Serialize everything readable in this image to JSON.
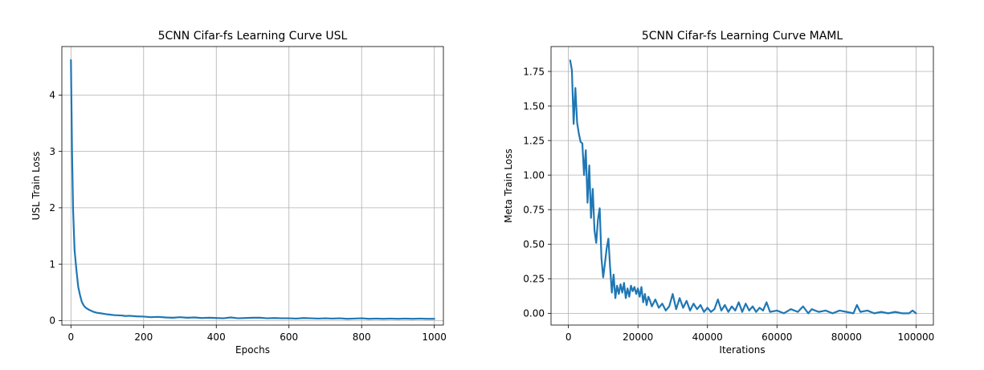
{
  "chart_data": [
    {
      "type": "line",
      "title": "5CNN Cifar-fs Learning Curve USL",
      "xlabel": "Epochs",
      "ylabel": "USL Train Loss",
      "xlim": [
        -25,
        1025
      ],
      "ylim": [
        -0.08,
        4.86
      ],
      "xticks": [
        0,
        200,
        400,
        600,
        800,
        1000
      ],
      "yticks": [
        0,
        1,
        2,
        3,
        4
      ],
      "xtick_labels": [
        "0",
        "200",
        "400",
        "600",
        "800",
        "1000"
      ],
      "ytick_labels": [
        "0",
        "1",
        "2",
        "3",
        "4"
      ],
      "grid": true,
      "color": "#1f77b4",
      "series": [
        {
          "x": [
            0,
            3,
            6,
            10,
            15,
            20,
            25,
            30,
            35,
            40,
            50,
            60,
            70,
            80,
            90,
            100,
            120,
            140,
            150,
            160,
            180,
            200,
            220,
            240,
            260,
            280,
            300,
            320,
            340,
            360,
            380,
            400,
            420,
            440,
            460,
            480,
            500,
            520,
            540,
            560,
            580,
            600,
            620,
            640,
            660,
            680,
            700,
            720,
            740,
            760,
            780,
            800,
            820,
            840,
            860,
            880,
            900,
            920,
            940,
            960,
            980,
            1000
          ],
          "y": [
            4.62,
            3.0,
            1.95,
            1.25,
            0.9,
            0.6,
            0.45,
            0.33,
            0.27,
            0.23,
            0.19,
            0.16,
            0.14,
            0.13,
            0.12,
            0.11,
            0.095,
            0.09,
            0.08,
            0.085,
            0.075,
            0.07,
            0.06,
            0.065,
            0.055,
            0.05,
            0.06,
            0.05,
            0.055,
            0.045,
            0.05,
            0.045,
            0.04,
            0.055,
            0.04,
            0.045,
            0.05,
            0.05,
            0.04,
            0.045,
            0.04,
            0.04,
            0.035,
            0.045,
            0.04,
            0.035,
            0.04,
            0.035,
            0.04,
            0.03,
            0.035,
            0.04,
            0.03,
            0.035,
            0.03,
            0.035,
            0.03,
            0.035,
            0.03,
            0.035,
            0.03,
            0.03
          ]
        }
      ]
    },
    {
      "type": "line",
      "title": "5CNN Cifar-fs Learning Curve MAML",
      "xlabel": "Iterations",
      "ylabel": "Meta Train Loss",
      "xlim": [
        -5000,
        105000
      ],
      "ylim": [
        -0.085,
        1.93
      ],
      "xticks": [
        0,
        20000,
        40000,
        60000,
        80000,
        100000
      ],
      "yticks": [
        0,
        0.25,
        0.5,
        0.75,
        1.0,
        1.25,
        1.5,
        1.75
      ],
      "xtick_labels": [
        "0",
        "20000",
        "40000",
        "60000",
        "80000",
        "100000"
      ],
      "ytick_labels": [
        "0.00",
        "0.25",
        "0.50",
        "0.75",
        "1.00",
        "1.25",
        "1.50",
        "1.75"
      ],
      "grid": true,
      "color": "#1f77b4",
      "series": [
        {
          "x": [
            500,
            1000,
            1500,
            2000,
            2500,
            3000,
            3500,
            4000,
            4500,
            5000,
            5500,
            6000,
            6500,
            7000,
            7500,
            8000,
            8500,
            9000,
            9500,
            10000,
            10500,
            11000,
            11500,
            12000,
            12500,
            13000,
            13500,
            14000,
            14500,
            15000,
            15500,
            16000,
            16500,
            17000,
            17500,
            18000,
            18500,
            19000,
            19500,
            20000,
            20500,
            21000,
            21500,
            22000,
            22500,
            23000,
            23500,
            24000,
            25000,
            26000,
            27000,
            28000,
            29000,
            30000,
            31000,
            32000,
            33000,
            34000,
            35000,
            36000,
            37000,
            38000,
            39000,
            40000,
            41000,
            42000,
            43000,
            44000,
            45000,
            46000,
            47000,
            48000,
            49000,
            50000,
            51000,
            52000,
            53000,
            54000,
            55000,
            56000,
            57000,
            58000,
            60000,
            62000,
            64000,
            66000,
            67500,
            69000,
            70000,
            72000,
            74000,
            76000,
            78000,
            80000,
            82000,
            83000,
            84000,
            86000,
            88000,
            90000,
            92000,
            94000,
            96000,
            98000,
            99000,
            100000
          ],
          "y": [
            1.83,
            1.76,
            1.37,
            1.63,
            1.38,
            1.3,
            1.24,
            1.23,
            1.0,
            1.18,
            0.8,
            1.07,
            0.69,
            0.9,
            0.6,
            0.51,
            0.68,
            0.76,
            0.4,
            0.26,
            0.36,
            0.47,
            0.54,
            0.33,
            0.15,
            0.28,
            0.11,
            0.2,
            0.14,
            0.21,
            0.15,
            0.22,
            0.11,
            0.18,
            0.12,
            0.2,
            0.16,
            0.19,
            0.14,
            0.18,
            0.12,
            0.19,
            0.08,
            0.14,
            0.06,
            0.12,
            0.09,
            0.05,
            0.1,
            0.04,
            0.07,
            0.02,
            0.05,
            0.14,
            0.03,
            0.11,
            0.04,
            0.09,
            0.02,
            0.07,
            0.03,
            0.06,
            0.01,
            0.04,
            0.01,
            0.03,
            0.1,
            0.02,
            0.06,
            0.01,
            0.05,
            0.02,
            0.08,
            0.01,
            0.07,
            0.02,
            0.05,
            0.01,
            0.04,
            0.02,
            0.08,
            0.01,
            0.02,
            0.0,
            0.03,
            0.01,
            0.05,
            0.0,
            0.03,
            0.01,
            0.02,
            0.0,
            0.02,
            0.01,
            0.0,
            0.06,
            0.01,
            0.02,
            0.0,
            0.01,
            0.0,
            0.01,
            0.0,
            0.0,
            0.02,
            0.0
          ]
        }
      ]
    }
  ]
}
